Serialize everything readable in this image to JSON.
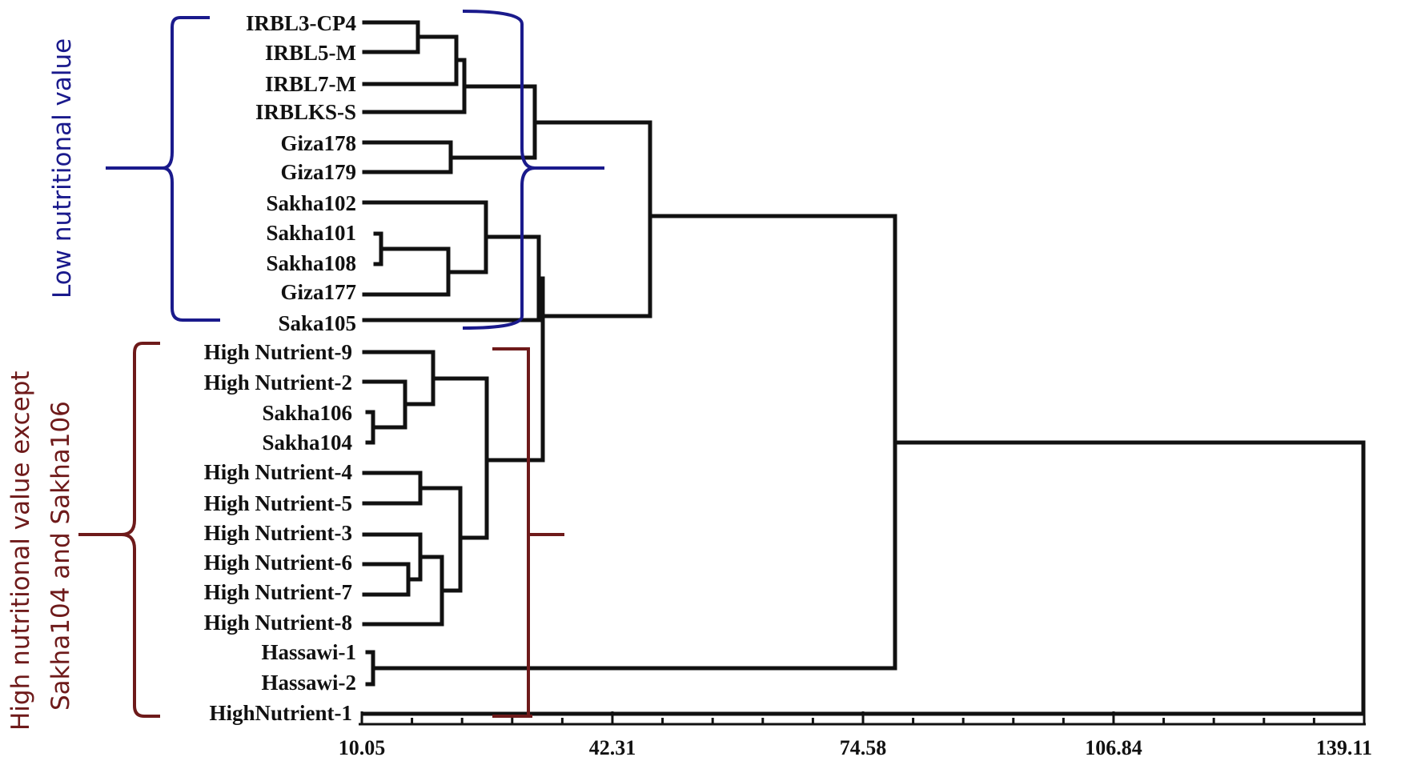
{
  "figure": {
    "type": "dendrogram",
    "axis_ticks": [
      "10.05",
      "42.31",
      "74.58",
      "106.84",
      "139.11"
    ],
    "axis_range": [
      10.05,
      139.11
    ],
    "leaves": [
      "IRBL3-CP4",
      "IRBL5-M",
      "IRBL7-M",
      "IRBLKS-S",
      "Giza178",
      "Giza179",
      "Sakha102",
      "Sakha101",
      "Sakha108",
      "Giza177",
      "Saka105",
      "High Nutrient-9",
      "High Nutrient-2",
      "Sakha106",
      "Sakha104",
      "High Nutrient-4",
      "High Nutrient-5",
      "High Nutrient-3",
      "High Nutrient-6",
      "High Nutrient-7",
      "High Nutrient-8",
      "Hassawi-1",
      "Hassawi-2",
      "HighNutrient-1"
    ],
    "groups": {
      "low": {
        "label": "Low nutritional value",
        "color": "#1a1a8c"
      },
      "high": {
        "label_line1": "High nutritional value except",
        "label_line2": "Sakha104 and Sakha106",
        "color": "#6e1a1a"
      }
    }
  }
}
